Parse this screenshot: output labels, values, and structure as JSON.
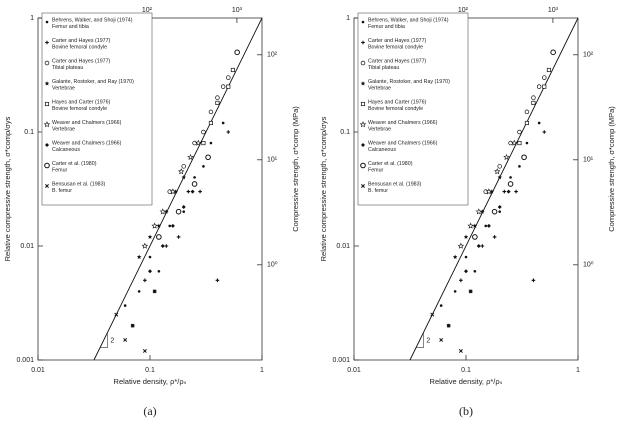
{
  "chart_data": [
    {
      "type": "scatter",
      "caption": "(a)",
      "xscale": "log",
      "yscale": "log",
      "xlabel": "Relative density, ρ*/ρₛ",
      "ylabel": "Relative compressive strength, σ*comp/σys",
      "y2label": "Compressive strength, σ*comp (MPa)",
      "xlim": [
        0.01,
        1
      ],
      "ylim": [
        0.001,
        1
      ],
      "xticks": [
        0.01,
        0.1,
        1
      ],
      "yticks": [
        0.001,
        0.01,
        0.1,
        1
      ],
      "x2lim": [
        6.15,
        1900
      ],
      "x2ticks": [
        {
          "value": 100,
          "label": "10²"
        },
        {
          "value": 1000,
          "label": "10³"
        }
      ],
      "y2lim": [
        0.124,
        224
      ],
      "y2ticks": [
        {
          "value": 1,
          "label": "10⁰"
        },
        {
          "value": 10,
          "label": "10¹"
        },
        {
          "value": 100,
          "label": "10²"
        }
      ],
      "fit_line": {
        "x": [
          0.0316,
          1
        ],
        "values": [
          0.001,
          1
        ]
      },
      "slope_label": "2",
      "color": "#111",
      "series": [
        {
          "name": "Behrens, Walker, and Shoji (1974)",
          "site": "Femur and tibia",
          "marker": "dot",
          "x": [
            0.06,
            0.08,
            0.1,
            0.12,
            0.15,
            0.2,
            0.25,
            0.3,
            0.35,
            0.45
          ],
          "values": [
            0.003,
            0.004,
            0.008,
            0.006,
            0.015,
            0.02,
            0.04,
            0.05,
            0.08,
            0.12
          ]
        },
        {
          "name": "Carter and Hayes (1977)",
          "site": "Bovine femoral condyle",
          "marker": "plus",
          "x": [
            0.07,
            0.09,
            0.11,
            0.14,
            0.18,
            0.22,
            0.28,
            0.4,
            0.5
          ],
          "values": [
            0.002,
            0.005,
            0.004,
            0.01,
            0.012,
            0.03,
            0.03,
            0.005,
            0.1
          ]
        },
        {
          "name": "Carter and Hayes (1977)",
          "site": "Tibial plateau",
          "marker": "circle",
          "x": [
            0.15,
            0.2,
            0.25,
            0.3,
            0.35,
            0.4,
            0.45,
            0.5
          ],
          "values": [
            0.03,
            0.05,
            0.08,
            0.1,
            0.15,
            0.2,
            0.25,
            0.3
          ]
        },
        {
          "name": "Galante, Rostoker, and Ray (1970)",
          "site": "Vertebrae",
          "marker": "star",
          "x": [
            0.08,
            0.1,
            0.12,
            0.14,
            0.17,
            0.2
          ],
          "values": [
            0.008,
            0.012,
            0.015,
            0.02,
            0.03,
            0.04
          ]
        },
        {
          "name": "Hayes and Carter (1976)",
          "site": "Bovine femoral condyle",
          "marker": "square",
          "x": [
            0.3,
            0.35,
            0.4,
            0.5,
            0.55
          ],
          "values": [
            0.08,
            0.12,
            0.18,
            0.25,
            0.35
          ]
        },
        {
          "name": "Weaver and Chalmers (1966)",
          "site": "Vertebrae",
          "marker": "open-star",
          "x": [
            0.09,
            0.11,
            0.13,
            0.16,
            0.19,
            0.23,
            0.27
          ],
          "values": [
            0.01,
            0.015,
            0.02,
            0.03,
            0.045,
            0.06,
            0.08
          ]
        },
        {
          "name": "Weaver and Chalmers (1966)",
          "site": "Calcaneous",
          "marker": "diamond",
          "x": [
            0.1,
            0.13,
            0.16,
            0.2,
            0.24
          ],
          "values": [
            0.006,
            0.01,
            0.015,
            0.022,
            0.03
          ]
        },
        {
          "name": "Carter et al. (1980)",
          "site": "Femur",
          "marker": "ring",
          "x": [
            0.12,
            0.18,
            0.25,
            0.33,
            0.6
          ],
          "values": [
            0.012,
            0.02,
            0.035,
            0.06,
            0.5
          ]
        },
        {
          "name": "Bensusan et al. (1983)",
          "site": "B. femur",
          "marker": "cross",
          "x": [
            0.05,
            0.07,
            0.06,
            0.09,
            0.11
          ],
          "values": [
            0.0025,
            0.002,
            0.0015,
            0.0012,
            0.004
          ]
        }
      ]
    },
    {
      "type": "scatter",
      "caption": "(b)",
      "xscale": "log",
      "yscale": "log",
      "xlabel": "Relative density, ρ*/ρₛ",
      "ylabel": "Relative compressive strength, σ*comp/σys",
      "y2label": "Compressive strength, σ*comp (MPa)",
      "xlim": [
        0.01,
        1
      ],
      "ylim": [
        0.001,
        1
      ],
      "xticks": [
        0.01,
        0.1,
        1
      ],
      "yticks": [
        0.001,
        0.01,
        0.1,
        1
      ],
      "x2lim": [
        6.15,
        1900
      ],
      "x2ticks": [
        {
          "value": 100,
          "label": "10²"
        },
        {
          "value": 1000,
          "label": "10³"
        }
      ],
      "y2lim": [
        0.124,
        224
      ],
      "y2ticks": [
        {
          "value": 1,
          "label": "10⁰"
        },
        {
          "value": 10,
          "label": "10¹"
        },
        {
          "value": 100,
          "label": "10²"
        }
      ],
      "fit_line": {
        "x": [
          0.0316,
          1
        ],
        "values": [
          0.001,
          1
        ]
      },
      "slope_label": "2",
      "color": "#111",
      "series": [
        {
          "name": "Behrens, Walker, and Shoji (1974)",
          "site": "Femur and tibia",
          "marker": "dot",
          "x": [
            0.06,
            0.08,
            0.1,
            0.12,
            0.15,
            0.2,
            0.25,
            0.3,
            0.35,
            0.45
          ],
          "values": [
            0.003,
            0.004,
            0.008,
            0.006,
            0.015,
            0.02,
            0.04,
            0.05,
            0.08,
            0.12
          ]
        },
        {
          "name": "Carter and Hayes (1977)",
          "site": "Bovine femoral condyle",
          "marker": "plus",
          "x": [
            0.07,
            0.09,
            0.11,
            0.14,
            0.18,
            0.22,
            0.28,
            0.4,
            0.5
          ],
          "values": [
            0.002,
            0.005,
            0.004,
            0.01,
            0.012,
            0.03,
            0.03,
            0.005,
            0.1
          ]
        },
        {
          "name": "Carter and Hayes (1977)",
          "site": "Tibial plateau",
          "marker": "circle",
          "x": [
            0.15,
            0.2,
            0.25,
            0.3,
            0.35,
            0.4,
            0.45,
            0.5
          ],
          "values": [
            0.03,
            0.05,
            0.08,
            0.1,
            0.15,
            0.2,
            0.25,
            0.3
          ]
        },
        {
          "name": "Galante, Rostoker, and Ray (1970)",
          "site": "Vertebrae",
          "marker": "star",
          "x": [
            0.08,
            0.1,
            0.12,
            0.14,
            0.17,
            0.2
          ],
          "values": [
            0.008,
            0.012,
            0.015,
            0.02,
            0.03,
            0.04
          ]
        },
        {
          "name": "Hayes and Carter (1976)",
          "site": "Bovine femoral condyle",
          "marker": "square",
          "x": [
            0.3,
            0.35,
            0.4,
            0.5,
            0.55
          ],
          "values": [
            0.08,
            0.12,
            0.18,
            0.25,
            0.35
          ]
        },
        {
          "name": "Weaver and Chalmers (1966)",
          "site": "Vertebrae",
          "marker": "open-star",
          "x": [
            0.09,
            0.11,
            0.13,
            0.16,
            0.19,
            0.23,
            0.27
          ],
          "values": [
            0.01,
            0.015,
            0.02,
            0.03,
            0.045,
            0.06,
            0.08
          ]
        },
        {
          "name": "Weaver and Chalmers (1966)",
          "site": "Calcaneous",
          "marker": "diamond",
          "x": [
            0.1,
            0.13,
            0.16,
            0.2,
            0.24
          ],
          "values": [
            0.006,
            0.01,
            0.015,
            0.022,
            0.03
          ]
        },
        {
          "name": "Carter et al. (1980)",
          "site": "Femur",
          "marker": "ring",
          "x": [
            0.12,
            0.18,
            0.25,
            0.33,
            0.6
          ],
          "values": [
            0.012,
            0.02,
            0.035,
            0.06,
            0.5
          ]
        },
        {
          "name": "Bensusan et al. (1983)",
          "site": "B. femur",
          "marker": "cross",
          "x": [
            0.05,
            0.07,
            0.06,
            0.09,
            0.11
          ],
          "values": [
            0.0025,
            0.002,
            0.0015,
            0.0012,
            0.004
          ]
        }
      ]
    }
  ]
}
